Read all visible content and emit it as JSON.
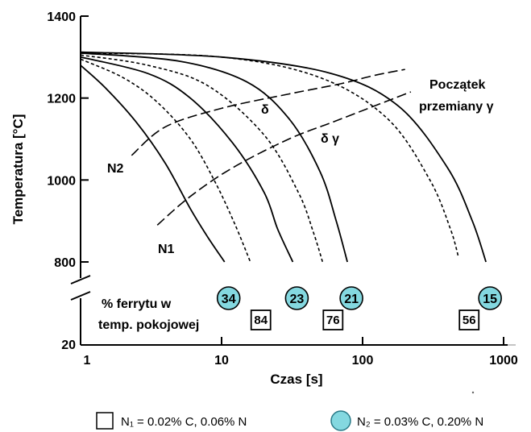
{
  "chart_data": {
    "type": "line",
    "xlabel": "Czas [s]",
    "ylabel": "Temperatura [°C]",
    "x_scale": "log",
    "xlim": [
      1,
      1000
    ],
    "ylim": [
      800,
      1400
    ],
    "x_ticks": [
      "1",
      "10",
      "100",
      "1000"
    ],
    "y_ticks": [
      "1400",
      "1200",
      "1000",
      "800"
    ],
    "y_break_label": "20",
    "grid": false,
    "annotations": {
      "delta": "δ",
      "delta_gamma": "δ γ",
      "start_line1": "Początek",
      "start_line2": "przemiany γ",
      "n2": "N2",
      "n1": "N1",
      "ferrite_line1": "% ferrytu w",
      "ferrite_line2": "temp. pokojowej"
    },
    "series": [
      {
        "style": "solid",
        "ferrite_label": "34",
        "x": [
          1,
          1.5,
          2.5,
          4,
          6,
          8,
          10.5
        ],
        "y": [
          1280,
          1225,
          1140,
          1040,
          930,
          860,
          800
        ]
      },
      {
        "style": "dashed",
        "ferrite_label": "84",
        "x": [
          1,
          2,
          3.5,
          6,
          9,
          12.5,
          16
        ],
        "y": [
          1295,
          1250,
          1190,
          1100,
          995,
          890,
          800
        ]
      },
      {
        "style": "solid",
        "ferrite_label": "23",
        "x": [
          1,
          3,
          6,
          12,
          20,
          25,
          32
        ],
        "y": [
          1300,
          1260,
          1200,
          1090,
          970,
          880,
          800
        ]
      },
      {
        "style": "dashed",
        "ferrite_label": "76",
        "x": [
          1,
          3,
          8,
          20,
          35,
          45,
          52
        ],
        "y": [
          1305,
          1280,
          1230,
          1110,
          970,
          870,
          800
        ]
      },
      {
        "style": "solid",
        "ferrite_label": "21",
        "x": [
          1,
          5,
          15,
          30,
          50,
          65,
          78
        ],
        "y": [
          1310,
          1290,
          1240,
          1150,
          1020,
          900,
          800
        ]
      },
      {
        "style": "dashed",
        "ferrite_label": "56",
        "x": [
          1,
          10,
          50,
          150,
          300,
          420,
          480
        ],
        "y": [
          1310,
          1300,
          1250,
          1150,
          1000,
          880,
          810
        ]
      },
      {
        "style": "solid",
        "ferrite_label": "15",
        "x": [
          1,
          10,
          60,
          180,
          400,
          600,
          750
        ],
        "y": [
          1312,
          1300,
          1260,
          1180,
          1030,
          900,
          800
        ]
      }
    ],
    "start_curves": [
      {
        "name": "N2",
        "x": [
          2.3,
          4,
          10,
          30,
          70,
          120,
          200
        ],
        "y": [
          1060,
          1130,
          1175,
          1210,
          1235,
          1255,
          1270
        ]
      },
      {
        "name": "N1",
        "x": [
          3.5,
          6,
          12,
          30,
          60,
          120,
          220
        ],
        "y": [
          890,
          960,
          1030,
          1100,
          1140,
          1180,
          1215
        ]
      }
    ],
    "legend": {
      "box_label": "N₁ = 0.02% C, 0.06% N",
      "circle_label": "N₂ = 0.03% C, 0.20% N"
    },
    "colors": {
      "circle_fill": "#84d8e0",
      "line": "#000000"
    }
  }
}
